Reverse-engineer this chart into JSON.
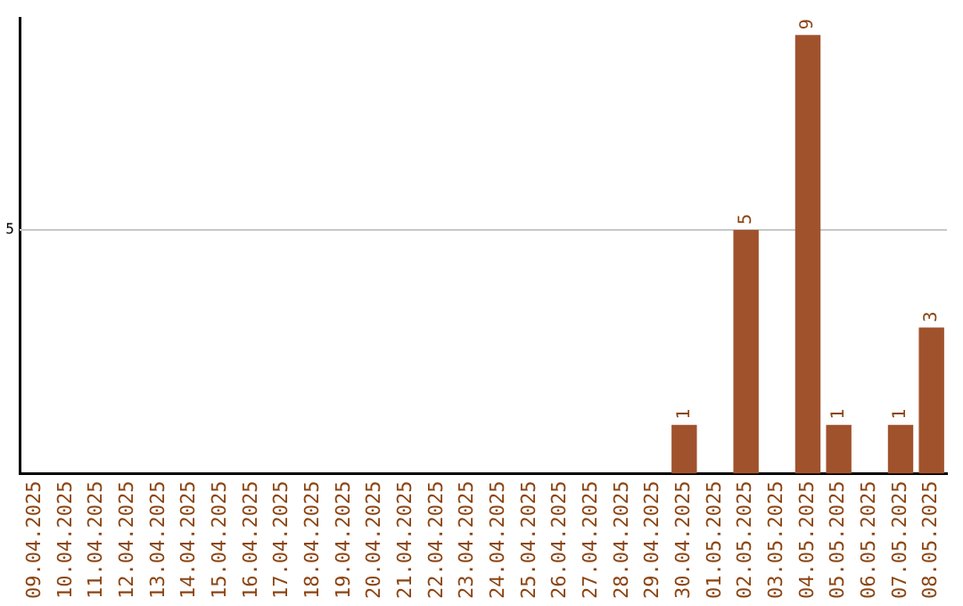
{
  "chart_data": {
    "type": "bar",
    "categories": [
      "09.04.2025",
      "10.04.2025",
      "11.04.2025",
      "12.04.2025",
      "13.04.2025",
      "14.04.2025",
      "15.04.2025",
      "16.04.2025",
      "17.04.2025",
      "18.04.2025",
      "19.04.2025",
      "20.04.2025",
      "21.04.2025",
      "22.04.2025",
      "23.04.2025",
      "24.04.2025",
      "25.04.2025",
      "26.04.2025",
      "27.04.2025",
      "28.04.2025",
      "29.04.2025",
      "30.04.2025",
      "01.05.2025",
      "02.05.2025",
      "03.05.2025",
      "04.05.2025",
      "05.05.2025",
      "06.05.2025",
      "07.05.2025",
      "08.05.2025"
    ],
    "values": [
      null,
      null,
      null,
      null,
      null,
      null,
      null,
      null,
      null,
      null,
      null,
      null,
      null,
      null,
      null,
      null,
      null,
      null,
      null,
      null,
      null,
      1,
      null,
      5,
      null,
      9,
      1,
      null,
      1,
      3
    ],
    "data_labels": true,
    "color": "#a0522d",
    "ylim": [
      0,
      9.35
    ],
    "ref_lines": [
      {
        "axis": "y",
        "value": 5,
        "label": "5",
        "color": "#c8c8c8"
      }
    ],
    "legend": false
  }
}
